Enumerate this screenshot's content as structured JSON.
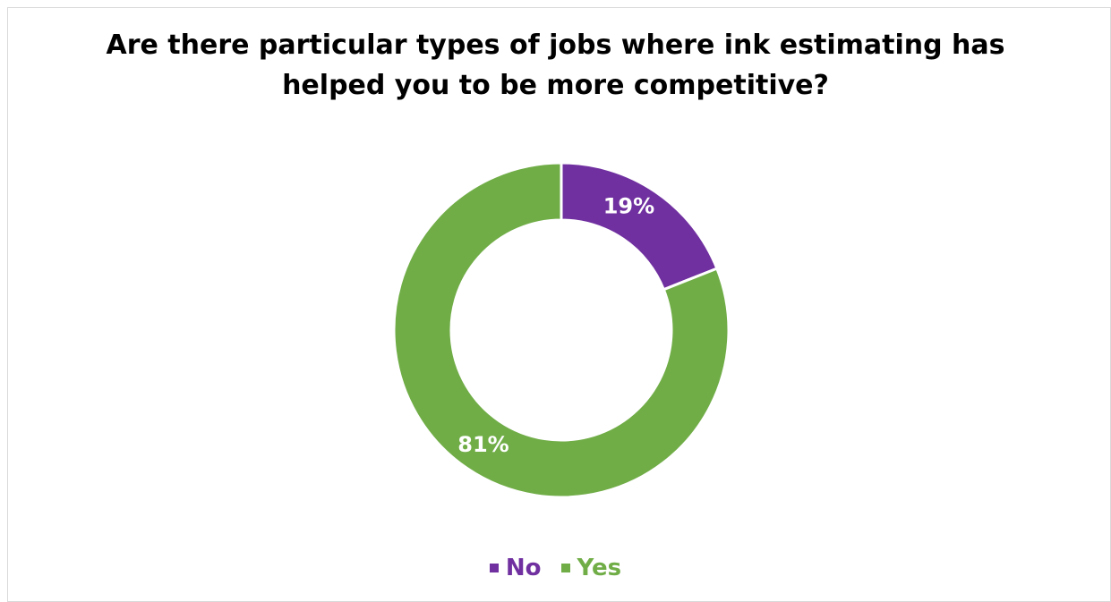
{
  "chart_data": {
    "type": "pie",
    "donut": true,
    "title_lines": [
      "Are there particular types of jobs where ink estimating has",
      "helped you to be more competitive?"
    ],
    "series": [
      {
        "name": "No",
        "value": 19,
        "label": "19%",
        "color": "#7030a0"
      },
      {
        "name": "Yes",
        "value": 81,
        "label": "81%",
        "color": "#70ad47"
      }
    ],
    "legend": {
      "position": "bottom",
      "items": [
        "No",
        "Yes"
      ]
    }
  }
}
